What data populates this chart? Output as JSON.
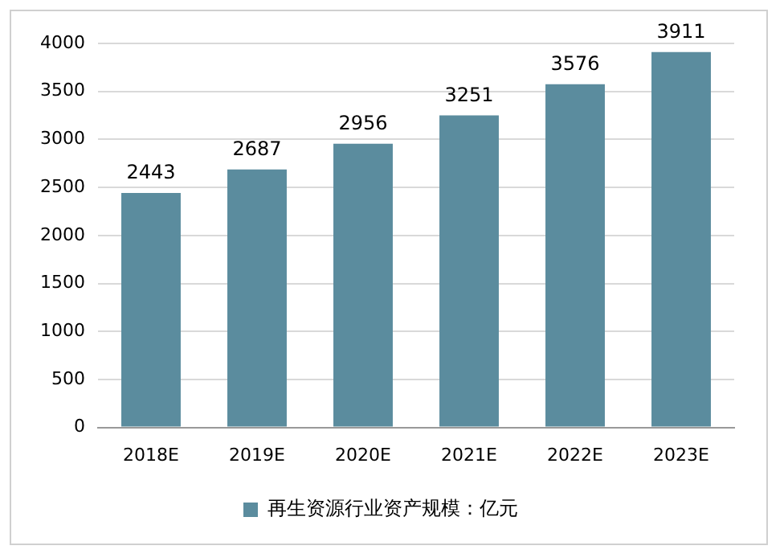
{
  "chart_data": {
    "type": "bar",
    "categories": [
      "2018E",
      "2019E",
      "2020E",
      "2021E",
      "2022E",
      "2023E"
    ],
    "series": [
      {
        "name": "再生资源行业资产规模：亿元",
        "color": "#5b8c9e",
        "values": [
          2443,
          2687,
          2956,
          3251,
          3576,
          3911
        ]
      }
    ],
    "ylim": [
      0,
      4000
    ],
    "yticks": [
      0,
      500,
      1000,
      1500,
      2000,
      2500,
      3000,
      3500,
      4000
    ],
    "grid": "y",
    "legend": "bottom",
    "data_labels": true
  }
}
